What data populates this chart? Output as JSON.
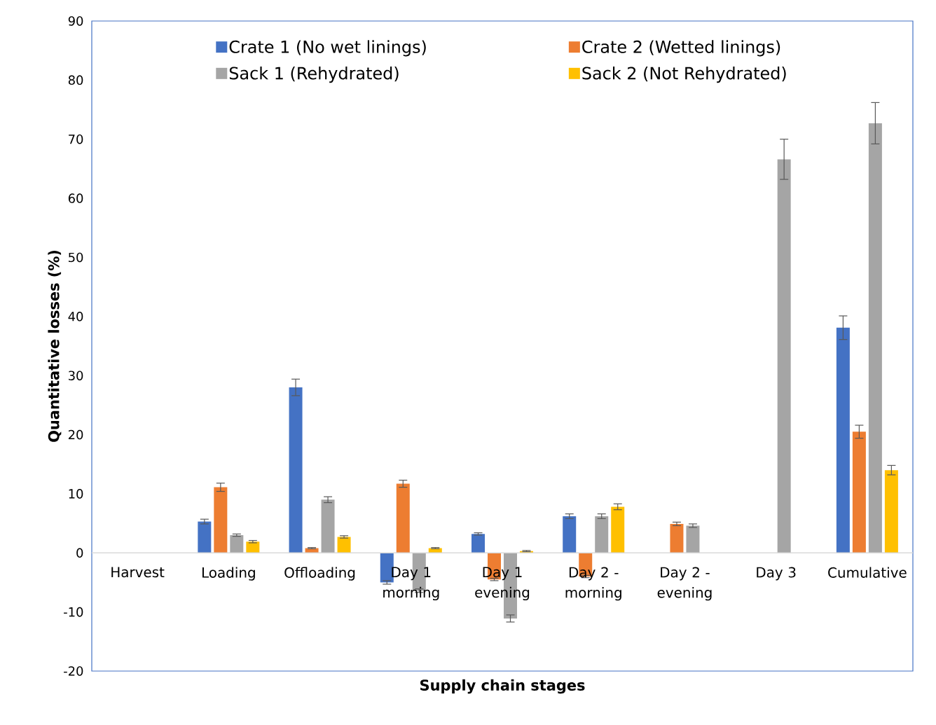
{
  "chart_data": {
    "type": "bar",
    "xlabel": "Supply chain stages",
    "ylabel": "Quantitative losses (%)",
    "categories": [
      "Harvest",
      "Loading",
      "Offloading",
      "Day 1 morning",
      "Day 1 evening",
      "Day 2 - morning",
      "Day 2 - evening",
      "Day 3",
      "Cumulative"
    ],
    "ylim": [
      -20,
      90
    ],
    "yticks": [
      -20,
      -10,
      0,
      10,
      20,
      30,
      40,
      50,
      60,
      70,
      80,
      90
    ],
    "grid": false,
    "legend": "top",
    "series": [
      {
        "name": "Crate 1 (No wet linings)",
        "color": "#4472c4",
        "values": [
          0,
          5.3,
          28.0,
          -5.0,
          3.2,
          6.2,
          null,
          null,
          38.1
        ],
        "errors": [
          null,
          0.4,
          1.4,
          0.3,
          0.2,
          0.4,
          null,
          null,
          2.0
        ]
      },
      {
        "name": "Crate 2 (Wetted linings)",
        "color": "#ed7d31",
        "values": [
          0,
          11.1,
          0.8,
          11.7,
          -4.5,
          -4.0,
          4.9,
          null,
          20.5
        ],
        "errors": [
          null,
          0.7,
          0.1,
          0.6,
          0.2,
          0.2,
          0.3,
          null,
          1.1
        ]
      },
      {
        "name": "Sack 1 (Rehydrated)",
        "color": "#a5a5a5",
        "values": [
          0,
          3.0,
          9.0,
          -6.4,
          -11.1,
          6.2,
          4.6,
          66.6,
          72.7
        ],
        "errors": [
          null,
          0.2,
          0.5,
          0.3,
          0.6,
          0.4,
          0.3,
          3.4,
          3.5
        ]
      },
      {
        "name": "Sack 2 (Not Rehydrated)",
        "color": "#ffc000",
        "values": [
          0,
          1.9,
          2.7,
          0.8,
          0.3,
          7.8,
          null,
          null,
          14.0
        ],
        "errors": [
          null,
          0.2,
          0.2,
          0.1,
          0.1,
          0.5,
          null,
          null,
          0.8
        ]
      }
    ]
  }
}
